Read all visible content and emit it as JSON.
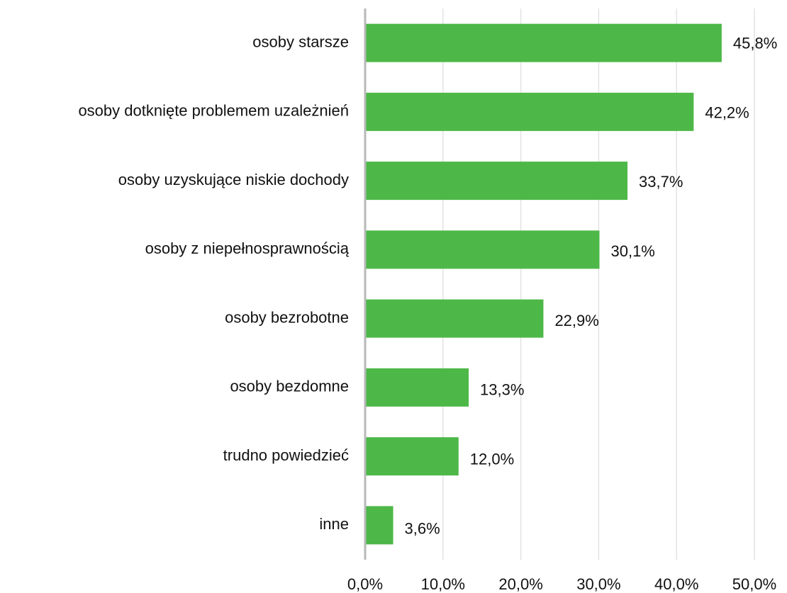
{
  "chart_data": {
    "type": "hbar",
    "categories": [
      "osoby starsze",
      "osoby dotknięte problemem uzależnień",
      "osoby uzyskujące niskie dochody",
      "osoby z niepełnosprawnością",
      "osoby bezrobotne",
      "osoby bezdomne",
      "trudno powiedzieć",
      "inne"
    ],
    "values": [
      45.8,
      42.2,
      33.7,
      30.1,
      22.9,
      13.3,
      12.0,
      3.6
    ],
    "value_labels": [
      "45,8%",
      "42,2%",
      "33,7%",
      "30,1%",
      "22,9%",
      "13,3%",
      "12,0%",
      "3,6%"
    ],
    "color": "#4db848",
    "xlim": [
      0,
      50
    ],
    "xticks": [
      {
        "value": 0,
        "label": "0,0%"
      },
      {
        "value": 10,
        "label": "10,0%"
      },
      {
        "value": 20,
        "label": "20,0%"
      },
      {
        "value": 30,
        "label": "30,0%"
      },
      {
        "value": 40,
        "label": "40,0%"
      },
      {
        "value": 50,
        "label": "50,0%"
      }
    ],
    "grid": true
  }
}
